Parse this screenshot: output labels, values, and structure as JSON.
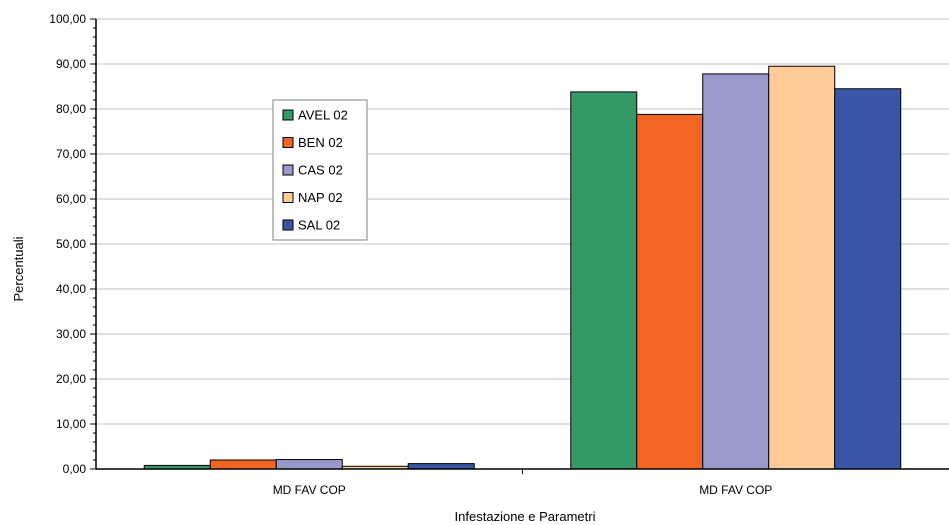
{
  "chart_data": {
    "type": "bar",
    "categories": [
      "MD FAV COP",
      "MD FAV COP"
    ],
    "series": [
      {
        "name": "AVEL 02",
        "color": "#339966",
        "values": [
          0.8,
          83.8
        ]
      },
      {
        "name": "BEN 02",
        "color": "#F26522",
        "values": [
          2.0,
          78.8
        ]
      },
      {
        "name": "CAS 02",
        "color": "#9999CC",
        "values": [
          2.1,
          87.8
        ]
      },
      {
        "name": "NAP 02",
        "color": "#FFCC99",
        "values": [
          0.6,
          89.5
        ]
      },
      {
        "name": "SAL 02",
        "color": "#3A55A5",
        "values": [
          1.2,
          84.5
        ]
      }
    ],
    "yticks": [
      "0,00",
      "10,00",
      "20,00",
      "30,00",
      "40,00",
      "50,00",
      "60,00",
      "70,00",
      "80,00",
      "90,00",
      "100,00"
    ],
    "ylim": [
      0,
      100
    ],
    "xlabel": "Infestazione e Parametri",
    "ylabel": "Percentuali",
    "title": "",
    "grid": true,
    "legend_position": "left"
  }
}
